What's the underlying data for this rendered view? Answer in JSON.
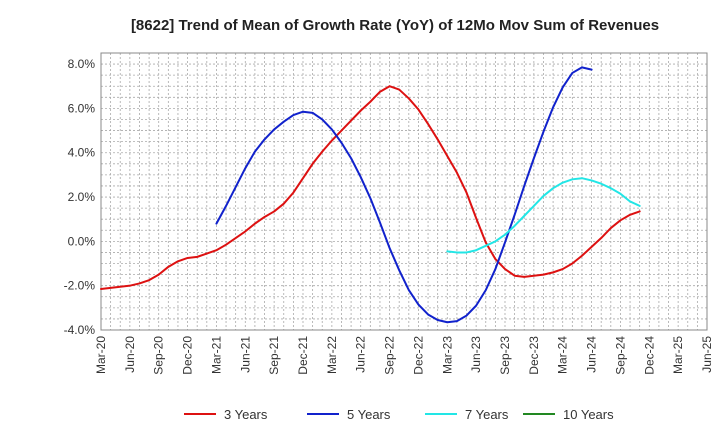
{
  "chart_data": {
    "type": "line",
    "title": "[8622]  Trend of Mean of Growth Rate (YoY) of 12Mo Mov Sum of Revenues",
    "xlabel": "",
    "ylabel": "",
    "ylim": [
      -4.0,
      8.5
    ],
    "x_ticks": [
      "Mar-20",
      "Jun-20",
      "Sep-20",
      "Dec-20",
      "Mar-21",
      "Jun-21",
      "Sep-21",
      "Dec-21",
      "Mar-22",
      "Jun-22",
      "Sep-22",
      "Dec-22",
      "Mar-23",
      "Jun-23",
      "Sep-23",
      "Dec-23",
      "Mar-24",
      "Jun-24",
      "Sep-24",
      "Dec-24",
      "Mar-25",
      "Jun-25"
    ],
    "y_ticks": [
      {
        "value": 8,
        "label": "8.0%"
      },
      {
        "value": 6,
        "label": "6.0%"
      },
      {
        "value": 4,
        "label": "4.0%"
      },
      {
        "value": 2,
        "label": "2.0%"
      },
      {
        "value": 0,
        "label": "0.0%"
      },
      {
        "value": -2,
        "label": "-2.0%"
      },
      {
        "value": -4,
        "label": "-4.0%"
      }
    ],
    "grid": true,
    "legend_position": "bottom",
    "series": [
      {
        "name": "3 Years",
        "color": "#dd1111",
        "x_start": 0,
        "values": [
          -2.15,
          -2.1,
          -2.05,
          -2.0,
          -1.9,
          -1.75,
          -1.5,
          -1.15,
          -0.9,
          -0.75,
          -0.7,
          -0.55,
          -0.4,
          -0.15,
          0.15,
          0.45,
          0.8,
          1.1,
          1.35,
          1.7,
          2.2,
          2.85,
          3.5,
          4.05,
          4.55,
          5.0,
          5.45,
          5.9,
          6.3,
          6.75,
          7.0,
          6.85,
          6.45,
          5.95,
          5.3,
          4.6,
          3.85,
          3.1,
          2.2,
          1.05,
          -0.05,
          -0.8,
          -1.25,
          -1.55,
          -1.6,
          -1.55,
          -1.5,
          -1.4,
          -1.25,
          -1.0,
          -0.65,
          -0.25,
          0.15,
          0.6,
          0.95,
          1.2,
          1.35
        ]
      },
      {
        "name": "5 Years",
        "color": "#1122cc",
        "x_start": 12,
        "values": [
          0.8,
          1.6,
          2.45,
          3.3,
          4.05,
          4.6,
          5.05,
          5.4,
          5.7,
          5.85,
          5.8,
          5.5,
          5.05,
          4.45,
          3.75,
          2.9,
          1.95,
          0.85,
          -0.3,
          -1.3,
          -2.2,
          -2.85,
          -3.3,
          -3.55,
          -3.65,
          -3.6,
          -3.35,
          -2.9,
          -2.2,
          -1.25,
          -0.05,
          1.2,
          2.5,
          3.75,
          4.95,
          6.05,
          6.95,
          7.6,
          7.85,
          7.75
        ]
      },
      {
        "name": "7 Years",
        "color": "#22e6e6",
        "x_start": 36,
        "values": [
          -0.45,
          -0.5,
          -0.5,
          -0.4,
          -0.2,
          0.0,
          0.3,
          0.7,
          1.15,
          1.6,
          2.05,
          2.4,
          2.65,
          2.8,
          2.85,
          2.75,
          2.6,
          2.4,
          2.15,
          1.8,
          1.6
        ]
      },
      {
        "name": "10 Years",
        "color": "#228822",
        "x_start": 0,
        "values": []
      }
    ]
  }
}
